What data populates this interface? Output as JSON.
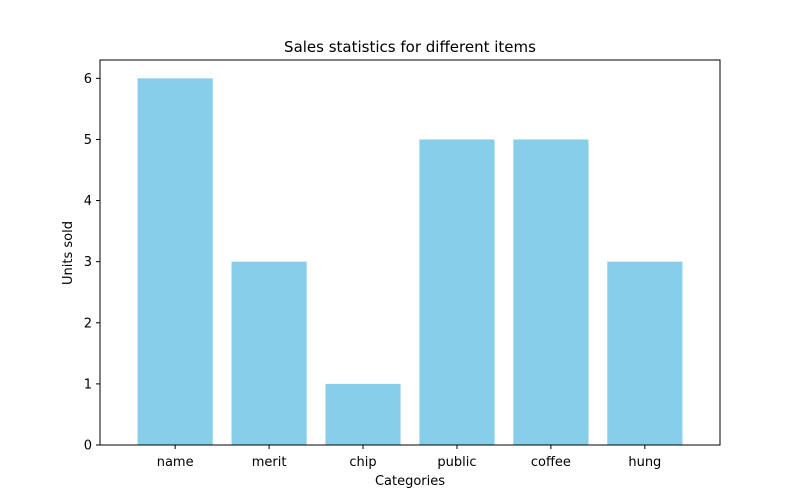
{
  "chart_data": {
    "type": "bar",
    "title": "Sales statistics for different items",
    "xlabel": "Categories",
    "ylabel": "Units sold",
    "categories": [
      "name",
      "merit",
      "chip",
      "public",
      "coffee",
      "hung"
    ],
    "values": [
      6,
      3,
      1,
      5,
      5,
      3
    ],
    "ylim": [
      0,
      6.3
    ],
    "yticks": [
      0,
      1,
      2,
      3,
      4,
      5,
      6
    ],
    "bar_color": "#87CEEB",
    "grid": false,
    "legend": "none"
  }
}
